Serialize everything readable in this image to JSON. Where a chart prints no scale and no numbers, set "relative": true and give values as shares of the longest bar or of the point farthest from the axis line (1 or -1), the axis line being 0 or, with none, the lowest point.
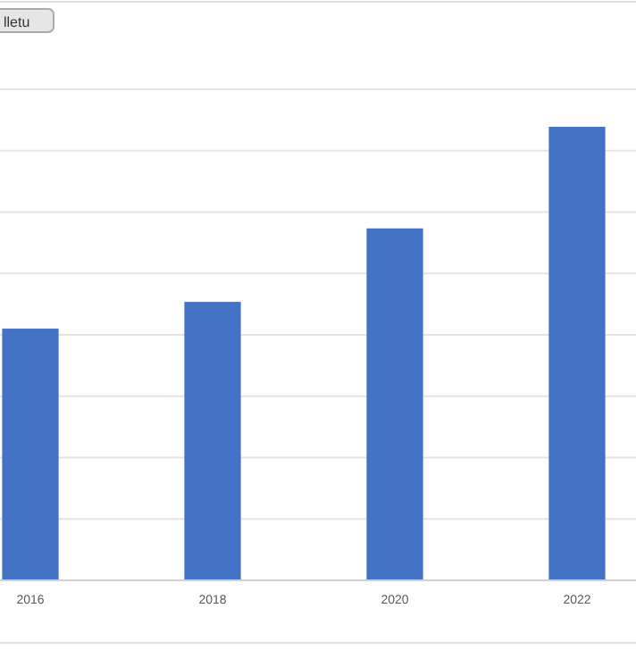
{
  "chart_data": {
    "type": "bar",
    "relative": true,
    "categories": [
      "2016",
      "2018",
      "2020",
      "2022"
    ],
    "values": [
      0.555,
      0.614,
      0.776,
      1
    ],
    "color": "#4472c4",
    "grid": "y",
    "annotations": [
      "lletu"
    ]
  }
}
